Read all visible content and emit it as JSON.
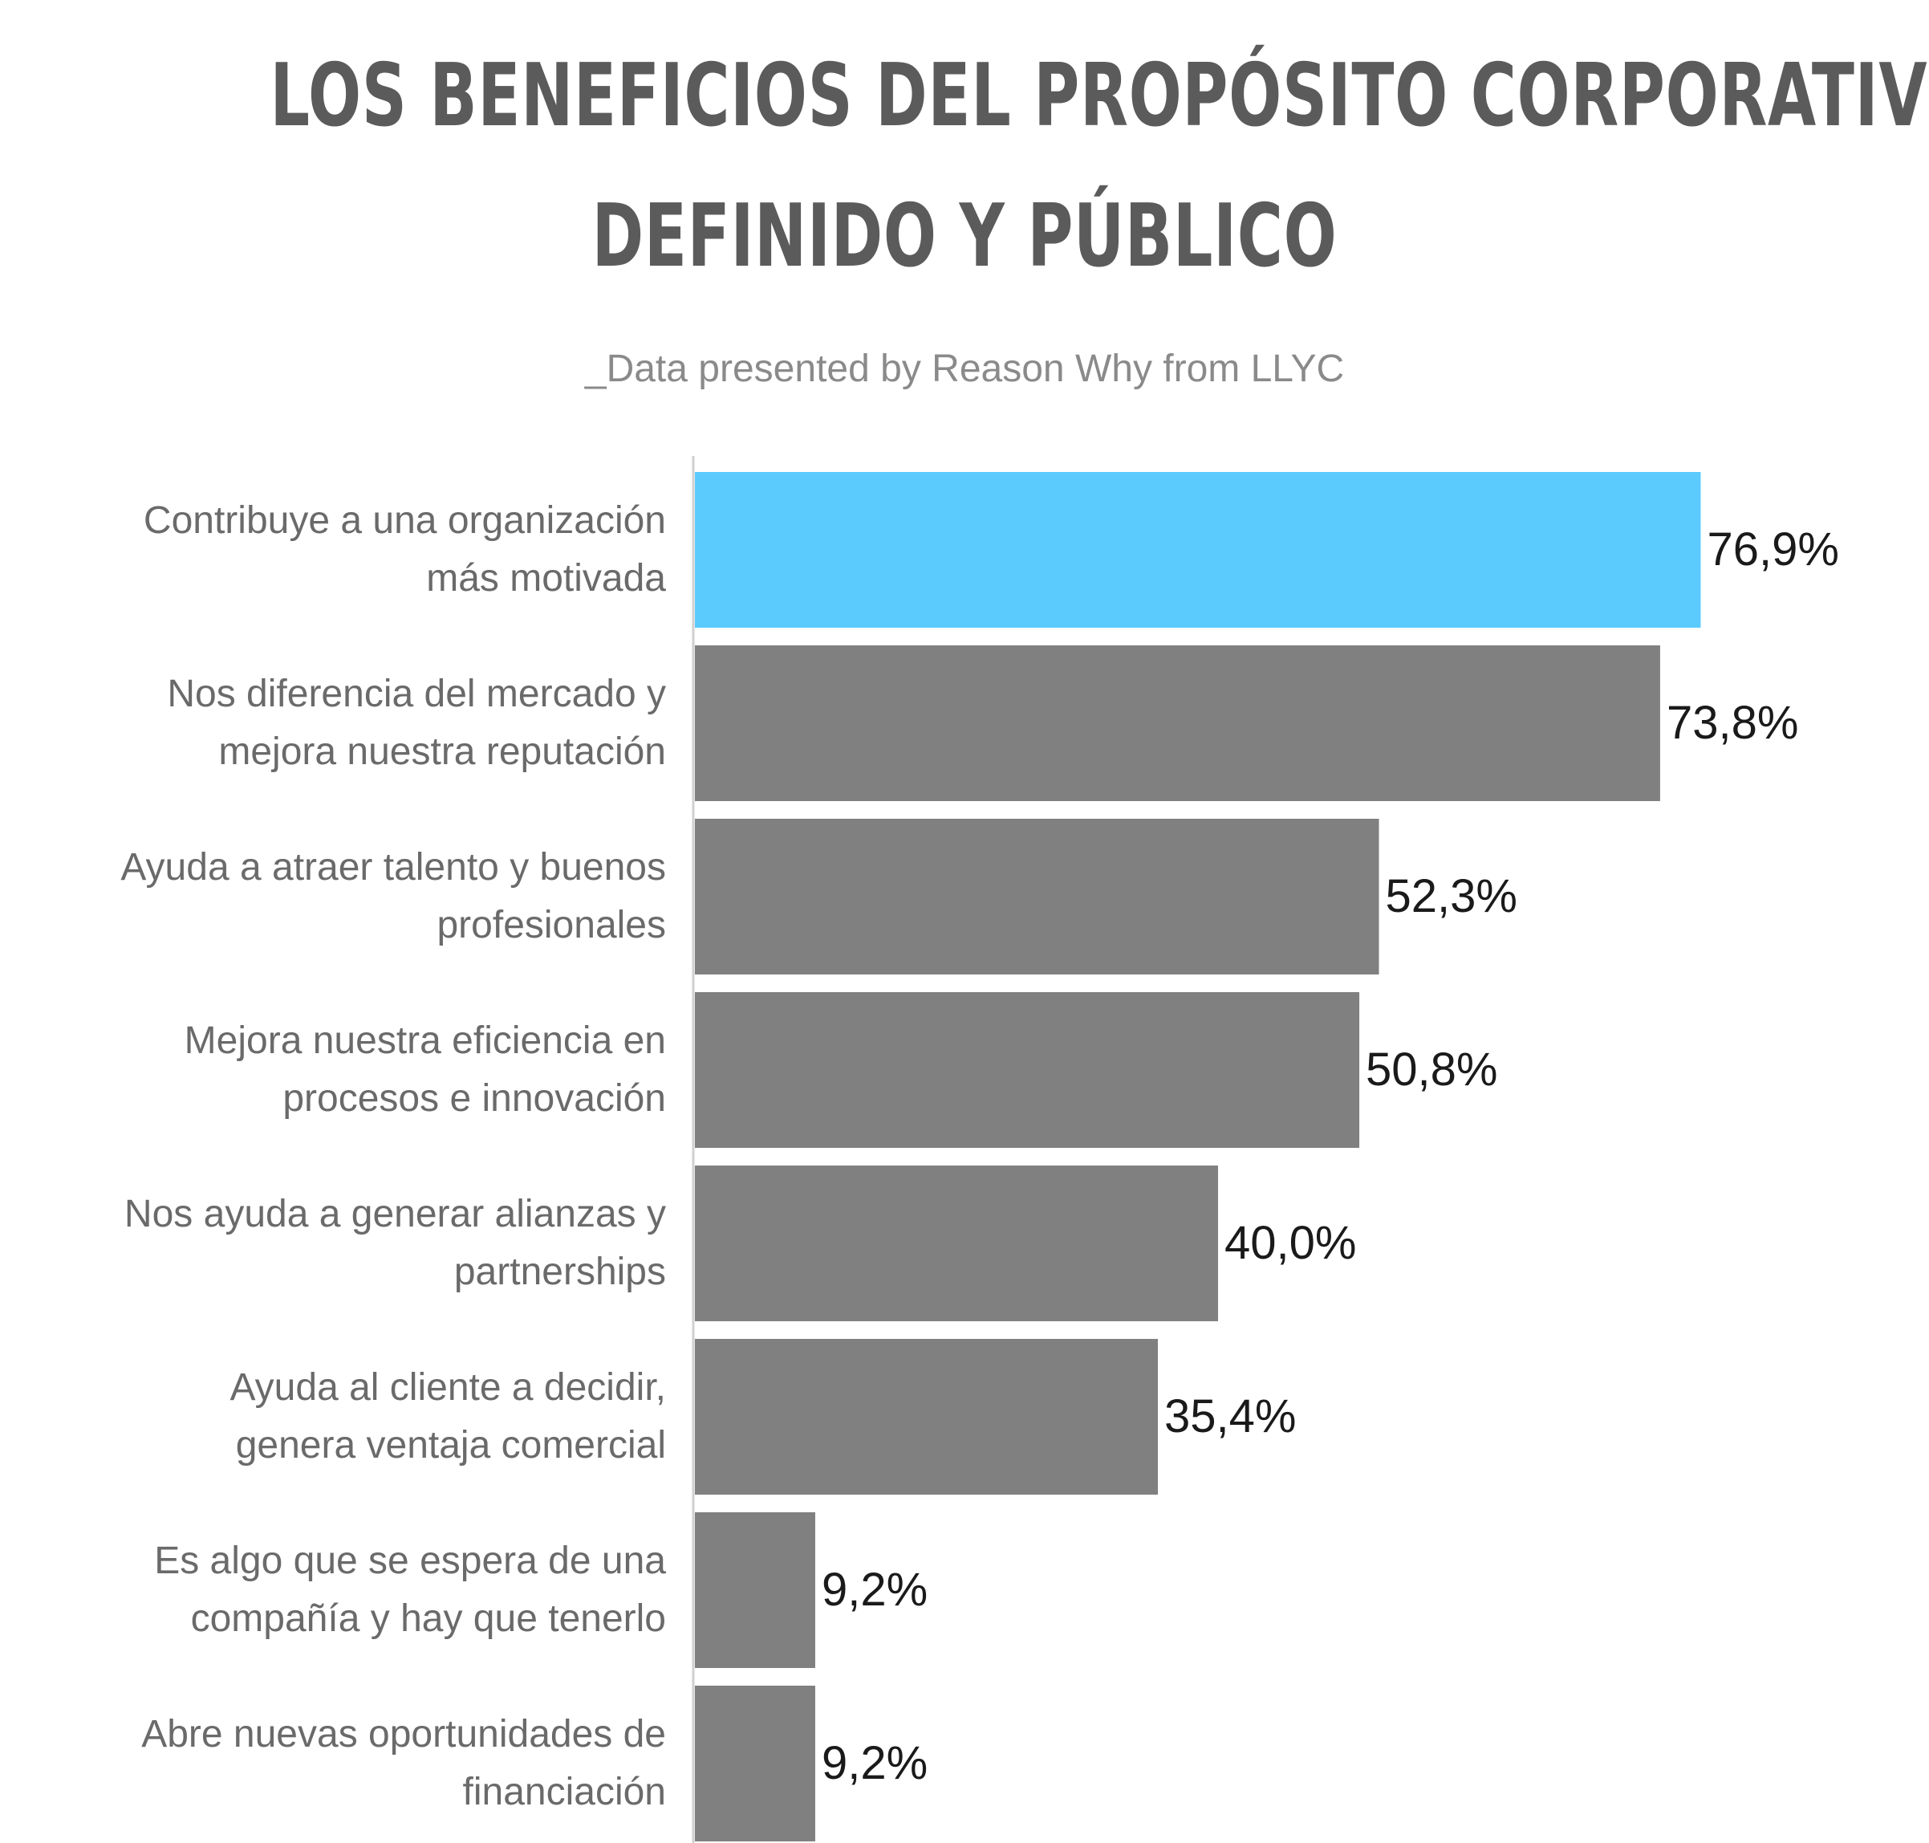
{
  "chart_data": {
    "type": "bar",
    "orientation": "horizontal",
    "title_lines": [
      "LOS BENEFICIOS DEL PROPÓSITO CORPORATIVO",
      "DEFINIDO Y PÚBLICO"
    ],
    "subtitle": "_Data presented by Reason Why from LLYC",
    "categories": [
      [
        "Contribuye a una organización",
        "más motivada"
      ],
      [
        "Nos diferencia del mercado y",
        "mejora nuestra reputación"
      ],
      [
        "Ayuda a atraer talento y buenos",
        "profesionales"
      ],
      [
        "Mejora nuestra eficiencia en",
        "procesos e innovación"
      ],
      [
        "Nos ayuda a generar alianzas y",
        "partnerships"
      ],
      [
        "Ayuda al cliente a decidir,",
        "genera ventaja comercial"
      ],
      [
        "Es algo que se espera de una",
        "compañía y hay que tenerlo"
      ],
      [
        "Abre nuevas oportunidades de",
        "financiación"
      ]
    ],
    "values": [
      76.9,
      73.8,
      52.3,
      50.8,
      40.0,
      35.4,
      9.2,
      9.2
    ],
    "value_labels": [
      "76,9%",
      "73,8%",
      "52,3%",
      "50,8%",
      "40,0%",
      "35,4%",
      "9,2%",
      "9,2%"
    ],
    "unit": "%",
    "xlim": [
      0,
      100
    ],
    "highlight_index": 0,
    "colors": {
      "highlight": "#5bcbfd",
      "bar": "#808080",
      "axis": "#d0d0d0",
      "title": "#5b5b5b",
      "subtitle": "#8a8a8a",
      "category_text": "#6a6a6a",
      "value_text": "#1a1a1a"
    },
    "grid": false,
    "legend": "none"
  }
}
